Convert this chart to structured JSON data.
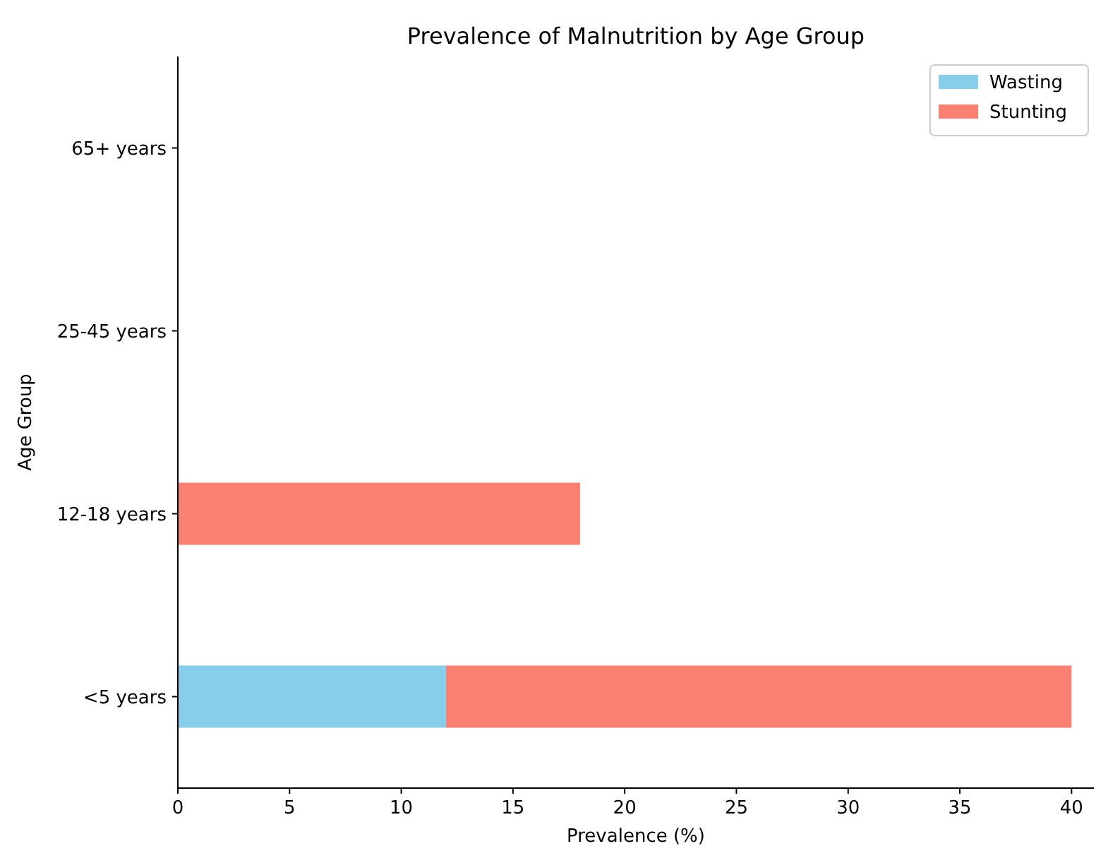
{
  "chart_data": {
    "type": "bar",
    "title": "Prevalence of Malnutrition by Age Group",
    "xlabel": "Prevalence (%)",
    "ylabel": "Age Group",
    "orientation": "horizontal",
    "stacked": true,
    "categories": [
      "65+ years",
      "25-45 years",
      "12-18 years",
      "<5 years"
    ],
    "series": [
      {
        "name": "Wasting",
        "color": "#87ceeb",
        "values": [
          0,
          0,
          0,
          12
        ]
      },
      {
        "name": "Stunting",
        "color": "#fa8072",
        "values": [
          0,
          0,
          18,
          28
        ]
      }
    ],
    "xlim": [
      0,
      41
    ],
    "xticks": [
      0,
      5,
      10,
      15,
      20,
      25,
      30,
      35,
      40
    ],
    "legend": "top right"
  }
}
